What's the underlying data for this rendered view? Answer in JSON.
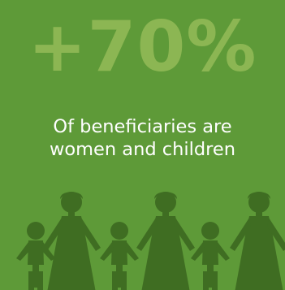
{
  "stat": {
    "value": "+70%"
  },
  "caption": {
    "line1": "Of beneficiaries are",
    "line2": "women and children"
  },
  "colors": {
    "background": "#5e9a38",
    "stat": "#8cb653",
    "figures": "#3f6d22",
    "caption": "#ffffff"
  },
  "icons": [
    "woman-icon",
    "child-icon"
  ]
}
